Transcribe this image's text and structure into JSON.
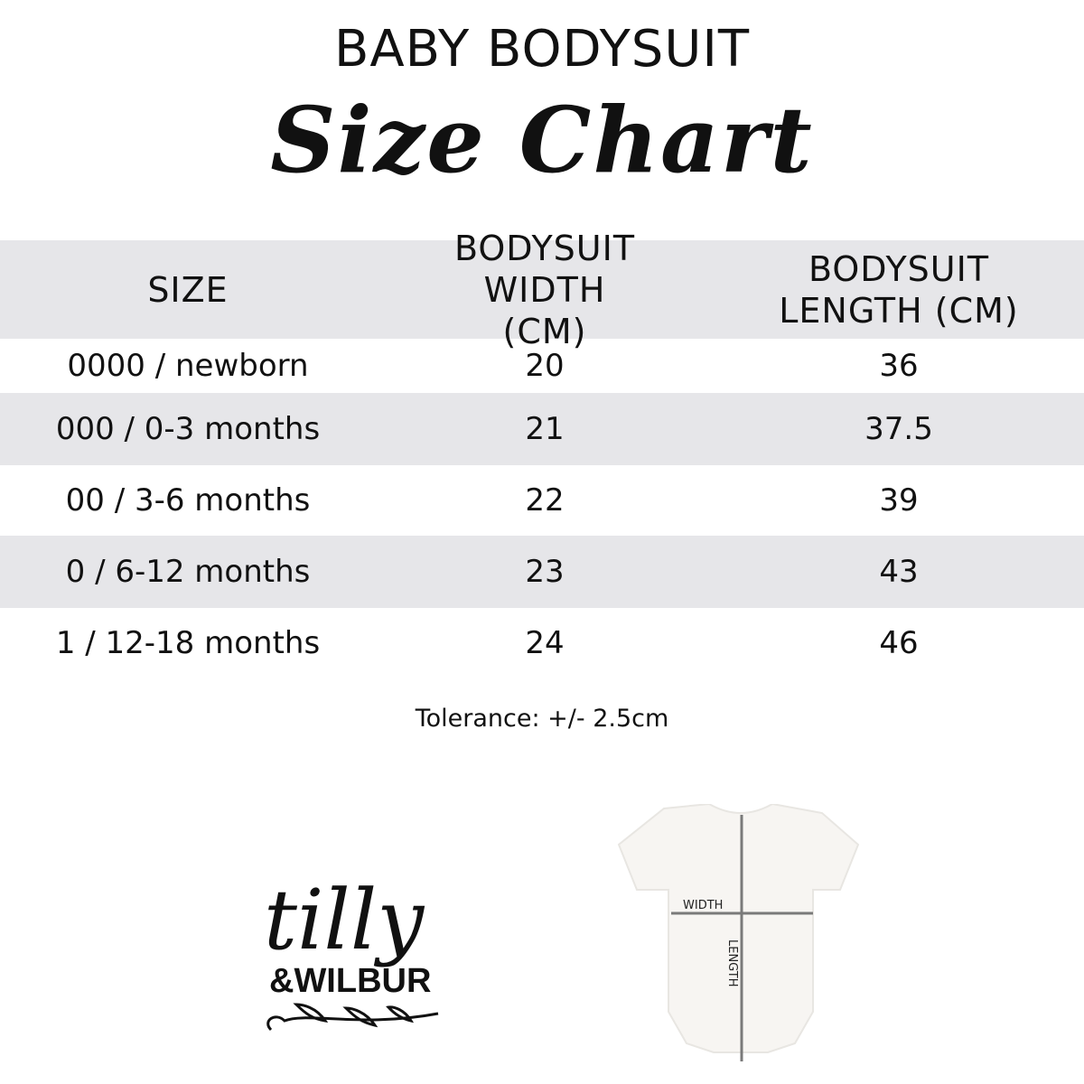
{
  "header": {
    "title": "BABY BODYSUIT",
    "subtitle": "Size Chart"
  },
  "table": {
    "columns": [
      "SIZE",
      "BODYSUIT WIDTH (CM)",
      "BODYSUIT LENGTH (CM)"
    ],
    "rows": [
      {
        "size": "0000 / newborn",
        "width": "20",
        "length": "36"
      },
      {
        "size": "000 / 0-3 months",
        "width": "21",
        "length": "37.5"
      },
      {
        "size": "00 / 3-6 months",
        "width": "22",
        "length": "39"
      },
      {
        "size": "0 / 6-12 months",
        "width": "23",
        "length": "43"
      },
      {
        "size": "1 / 12-18 months",
        "width": "24",
        "length": "46"
      }
    ]
  },
  "tolerance": "Tolerance: +/- 2.5cm",
  "logo": {
    "line1": "tilly",
    "line2": "&WILBUR"
  },
  "diagram": {
    "width_label": "WIDTH",
    "length_label": "LENGTH"
  },
  "colors": {
    "row_stripe": "#e6e6e9",
    "text": "#111111",
    "guide_line": "#7a7a7a"
  }
}
